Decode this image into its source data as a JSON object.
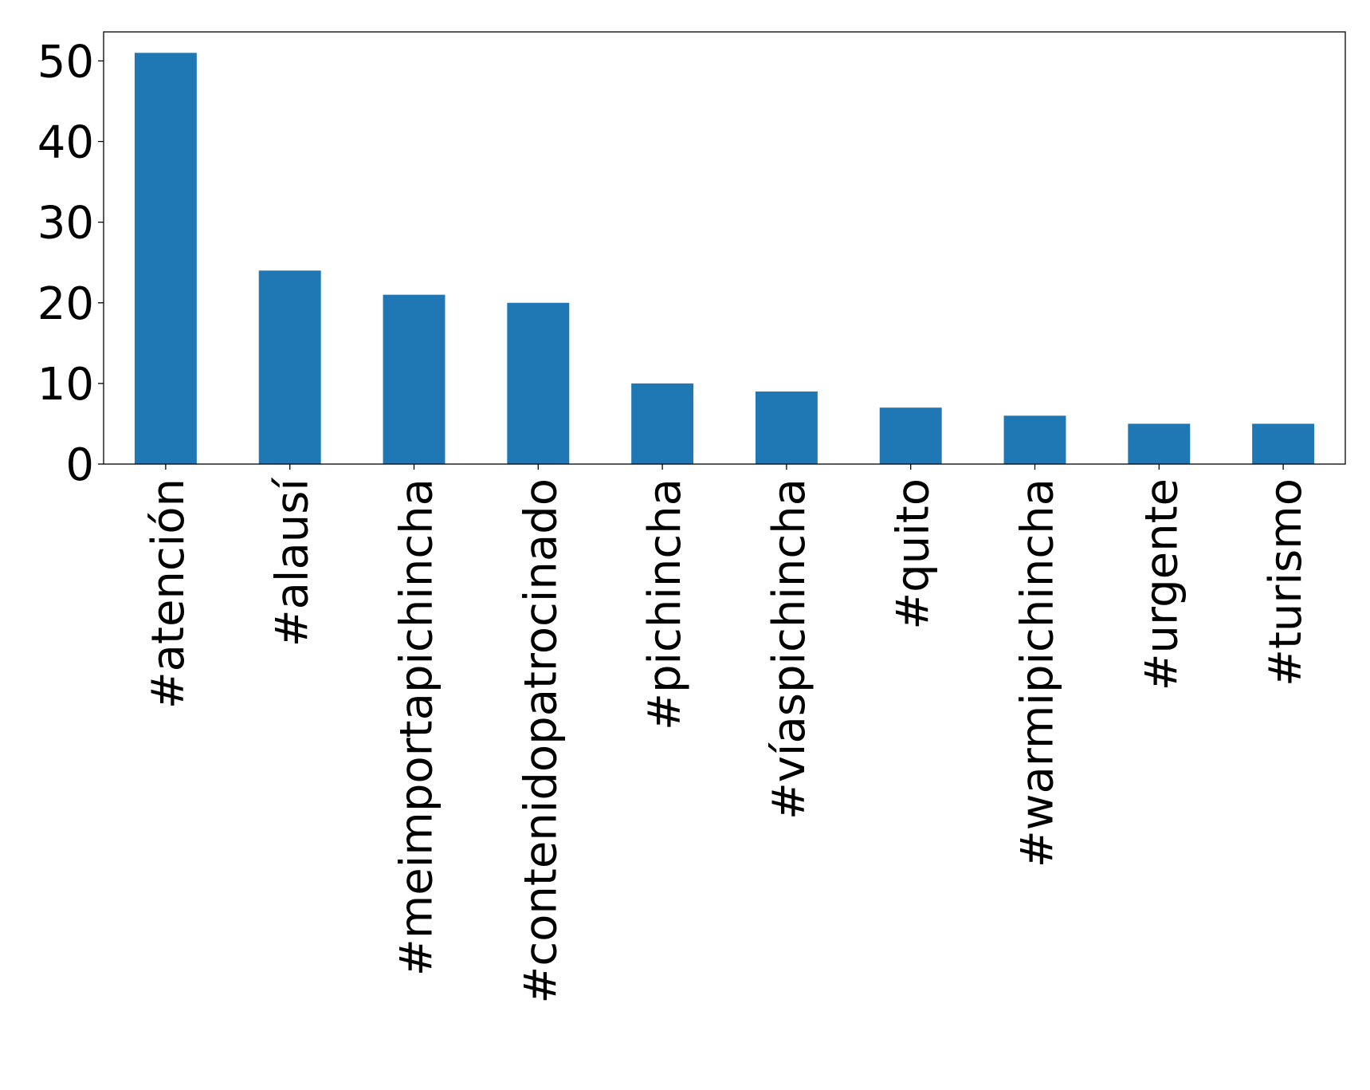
{
  "chart_data": {
    "type": "bar",
    "title": "",
    "xlabel": "",
    "ylabel": "",
    "categories": [
      "#atención",
      "#alausí",
      "#meimportapichincha",
      "#contenidopatrocinado",
      "#pichincha",
      "#víaspichincha",
      "#quito",
      "#warmipichincha",
      "#urgente",
      "#turismo"
    ],
    "values": [
      51,
      24,
      21,
      20,
      10,
      9,
      7,
      6,
      5,
      5
    ],
    "ylim": [
      0,
      53.6
    ],
    "yticks": [
      0,
      10,
      20,
      30,
      40,
      50
    ],
    "ytick_labels": [
      "0",
      "10",
      "20",
      "30",
      "40",
      "50"
    ],
    "bar_color": "#1f77b4",
    "grid": false,
    "legend": "none"
  }
}
